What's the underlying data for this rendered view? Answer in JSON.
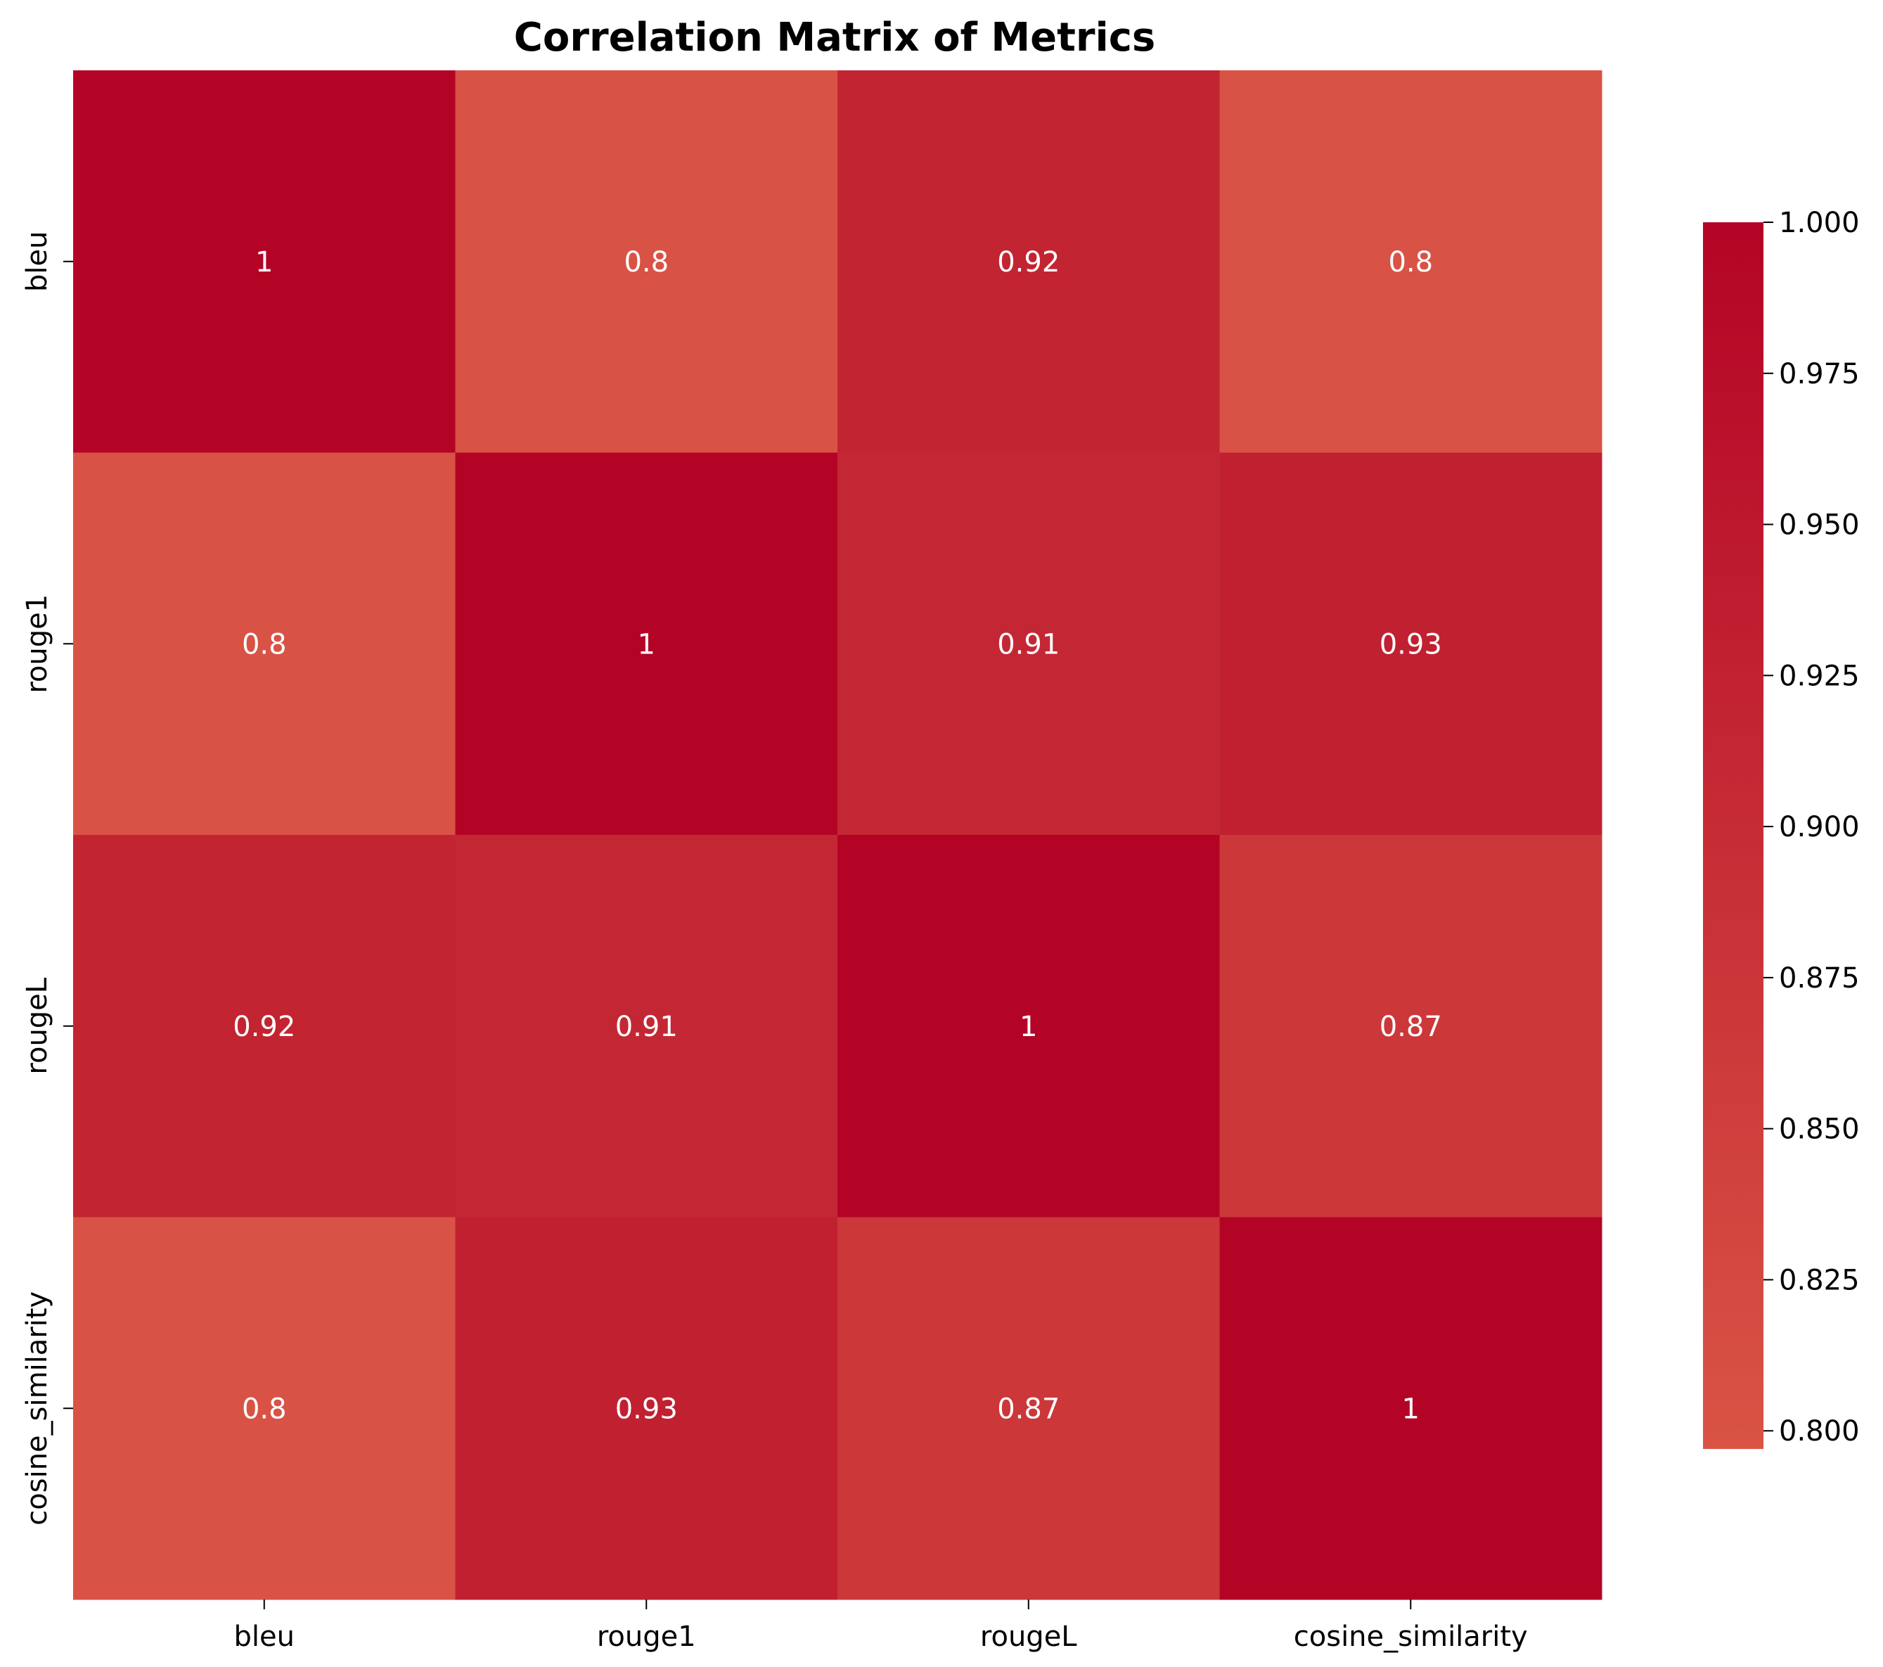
{
  "chart_data": {
    "type": "heatmap",
    "title": "Correlation Matrix of Metrics",
    "xlabel": "",
    "ylabel": "",
    "row_labels": [
      "bleu",
      "rouge1",
      "rougeL",
      "cosine_similarity"
    ],
    "col_labels": [
      "bleu",
      "rouge1",
      "rougeL",
      "cosine_similarity"
    ],
    "values": [
      [
        1.0,
        0.8,
        0.92,
        0.8
      ],
      [
        0.8,
        1.0,
        0.91,
        0.93
      ],
      [
        0.92,
        0.91,
        1.0,
        0.87
      ],
      [
        0.8,
        0.93,
        0.87,
        1.0
      ]
    ],
    "cell_text": [
      [
        "1",
        "0.8",
        "0.92",
        "0.8"
      ],
      [
        "0.8",
        "1",
        "0.91",
        "0.93"
      ],
      [
        "0.92",
        "0.91",
        "1",
        "0.87"
      ],
      [
        "0.8",
        "0.93",
        "0.87",
        "1"
      ]
    ],
    "colorbar": {
      "range": [
        0.797,
        1.0
      ],
      "ticks": [
        0.8,
        0.825,
        0.85,
        0.875,
        0.9,
        0.925,
        0.95,
        0.975,
        1.0
      ],
      "tick_labels": [
        "0.800",
        "0.825",
        "0.850",
        "0.875",
        "0.900",
        "0.925",
        "0.950",
        "0.975",
        "1.000"
      ],
      "color_low": "#d95445",
      "color_high": "#b40426"
    },
    "grid": false,
    "legend": "colorbar-right"
  }
}
